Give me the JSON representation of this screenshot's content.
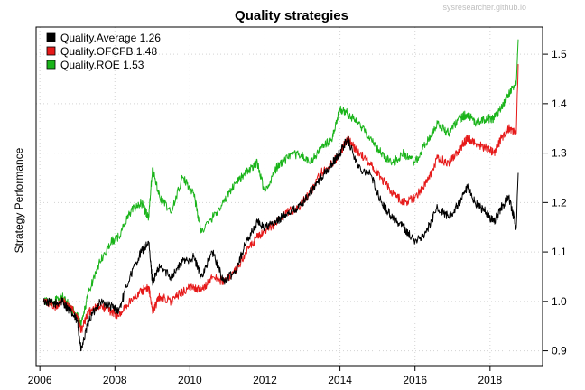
{
  "chart_data": {
    "type": "line",
    "title": "Quality strategies",
    "watermark": "sysresearcher.github.io",
    "ylabel": "Strategy Performance",
    "xlabel": "",
    "xlim": [
      2005.9,
      2019.4
    ],
    "ylim": [
      0.87,
      1.555
    ],
    "x_ticks": [
      2006,
      2008,
      2010,
      2012,
      2014,
      2016,
      2018
    ],
    "x_tick_labels": [
      "2006",
      "2008",
      "2010",
      "2012",
      "2014",
      "2016",
      "2018"
    ],
    "y_ticks": [
      0.9,
      1.0,
      1.1,
      1.2,
      1.3,
      1.4,
      1.5
    ],
    "y_tick_labels": [
      "0.9",
      "1.0",
      "1.1",
      "1.2",
      "1.3",
      "1.4",
      "1.5"
    ],
    "y_axis_side": "right",
    "grid": true,
    "legend_position": "top-left",
    "series": [
      {
        "name": "Quality.Average",
        "legend_label": "Quality.Average 1.26",
        "color": "#000000",
        "x": [
          2006.1,
          2006.4,
          2006.6,
          2006.8,
          2007.0,
          2007.1,
          2007.3,
          2007.6,
          2007.9,
          2008.1,
          2008.4,
          2008.7,
          2008.9,
          2009.0,
          2009.2,
          2009.5,
          2009.8,
          2010.1,
          2010.3,
          2010.6,
          2010.9,
          2011.2,
          2011.5,
          2011.8,
          2012.0,
          2012.3,
          2012.6,
          2012.9,
          2013.2,
          2013.5,
          2013.8,
          2014.0,
          2014.2,
          2014.5,
          2014.8,
          2015.1,
          2015.4,
          2015.7,
          2016.0,
          2016.3,
          2016.6,
          2016.9,
          2017.2,
          2017.4,
          2017.6,
          2017.9,
          2018.1,
          2018.3,
          2018.5,
          2018.7,
          2018.75
        ],
        "y": [
          1.0,
          0.995,
          1.0,
          0.98,
          0.96,
          0.9,
          0.96,
          1.0,
          0.99,
          0.98,
          1.05,
          1.1,
          1.12,
          1.04,
          1.07,
          1.05,
          1.08,
          1.09,
          1.05,
          1.1,
          1.04,
          1.06,
          1.12,
          1.16,
          1.15,
          1.16,
          1.18,
          1.19,
          1.22,
          1.25,
          1.28,
          1.3,
          1.33,
          1.27,
          1.26,
          1.2,
          1.17,
          1.15,
          1.12,
          1.14,
          1.19,
          1.17,
          1.2,
          1.23,
          1.2,
          1.18,
          1.16,
          1.19,
          1.21,
          1.15,
          1.26
        ]
      },
      {
        "name": "Quality.OFCFB",
        "legend_label": "Quality.OFCFB 1.48",
        "color": "#e61919",
        "x": [
          2006.1,
          2006.4,
          2006.6,
          2006.8,
          2007.0,
          2007.1,
          2007.3,
          2007.6,
          2007.9,
          2008.1,
          2008.4,
          2008.7,
          2008.9,
          2009.0,
          2009.2,
          2009.5,
          2009.8,
          2010.1,
          2010.3,
          2010.6,
          2010.9,
          2011.2,
          2011.5,
          2011.8,
          2012.0,
          2012.3,
          2012.6,
          2012.9,
          2013.2,
          2013.5,
          2013.8,
          2014.0,
          2014.2,
          2014.5,
          2014.8,
          2015.1,
          2015.4,
          2015.7,
          2016.0,
          2016.3,
          2016.6,
          2016.9,
          2017.2,
          2017.4,
          2017.6,
          2017.9,
          2018.1,
          2018.3,
          2018.5,
          2018.7,
          2018.75
        ],
        "y": [
          1.0,
          0.99,
          1.0,
          0.99,
          0.97,
          0.94,
          0.98,
          0.99,
          0.98,
          0.97,
          1.0,
          1.02,
          1.03,
          0.98,
          1.01,
          1.0,
          1.02,
          1.03,
          1.02,
          1.05,
          1.04,
          1.06,
          1.1,
          1.13,
          1.14,
          1.16,
          1.18,
          1.19,
          1.22,
          1.26,
          1.28,
          1.3,
          1.33,
          1.3,
          1.28,
          1.25,
          1.22,
          1.2,
          1.21,
          1.24,
          1.29,
          1.28,
          1.31,
          1.33,
          1.32,
          1.31,
          1.3,
          1.33,
          1.35,
          1.34,
          1.48
        ]
      },
      {
        "name": "Quality.ROE",
        "legend_label": "Quality.ROE 1.53",
        "color": "#1ab41a",
        "x": [
          2006.1,
          2006.4,
          2006.6,
          2006.8,
          2007.0,
          2007.1,
          2007.3,
          2007.6,
          2007.9,
          2008.1,
          2008.4,
          2008.7,
          2008.9,
          2009.0,
          2009.2,
          2009.5,
          2009.8,
          2010.1,
          2010.3,
          2010.6,
          2010.9,
          2011.2,
          2011.5,
          2011.8,
          2012.0,
          2012.3,
          2012.6,
          2012.9,
          2013.2,
          2013.5,
          2013.8,
          2014.0,
          2014.2,
          2014.5,
          2014.8,
          2015.1,
          2015.4,
          2015.7,
          2016.0,
          2016.3,
          2016.6,
          2016.9,
          2017.2,
          2017.4,
          2017.6,
          2017.9,
          2018.1,
          2018.3,
          2018.5,
          2018.7,
          2018.75
        ],
        "y": [
          1.0,
          1.0,
          1.01,
          0.99,
          0.97,
          0.95,
          1.02,
          1.08,
          1.12,
          1.13,
          1.18,
          1.2,
          1.17,
          1.27,
          1.21,
          1.18,
          1.25,
          1.22,
          1.14,
          1.17,
          1.2,
          1.24,
          1.26,
          1.28,
          1.22,
          1.27,
          1.29,
          1.3,
          1.28,
          1.31,
          1.33,
          1.39,
          1.38,
          1.36,
          1.33,
          1.3,
          1.28,
          1.3,
          1.28,
          1.32,
          1.36,
          1.34,
          1.37,
          1.38,
          1.36,
          1.37,
          1.37,
          1.39,
          1.42,
          1.44,
          1.53
        ]
      }
    ]
  }
}
